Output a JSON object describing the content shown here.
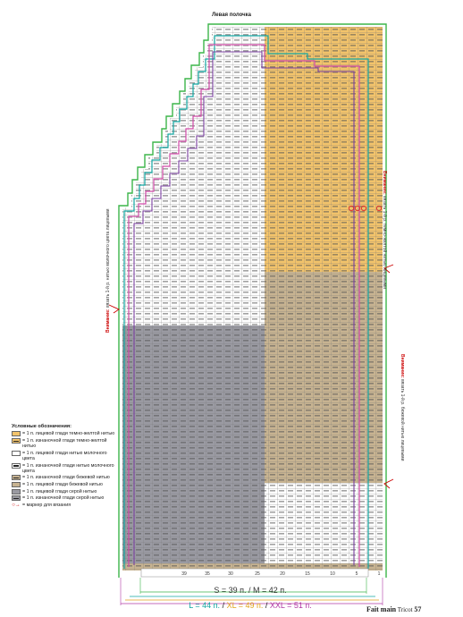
{
  "page": {
    "title": "Левая полочка"
  },
  "notes": {
    "left": {
      "strong": "Внимание:",
      "text": " вязать 1-й р. нитью молочного цвета лицевыми"
    },
    "right_top": {
      "strong": "Внимание:",
      "text": " вязать 1-й р. темно-желтой нитью лицевыми"
    },
    "right_bottom": {
      "strong": "Внимание:",
      "text": " вязать 1-й р. бежевой нитью лицевыми"
    }
  },
  "legend": {
    "title": "Условные обозначения:",
    "items": [
      {
        "label": "= 1 п. лицевой глади темно-желтой нитью",
        "color": "#f2c36b",
        "purl": false
      },
      {
        "label": "= 1 п. изнаночной глади темно-желтой нитью",
        "color": "#f2c36b",
        "purl": true
      },
      {
        "label": "= 1 п. лицевой глади нитью молочного цвета",
        "color": "#ffffff",
        "purl": false
      },
      {
        "label": "= 1 п. изнаночной глади нитью молочного цвета",
        "color": "#ffffff",
        "purl": true
      },
      {
        "label": "= 1 п. изнаночной глади бежевой нитью",
        "color": "#c7b391",
        "purl": true
      },
      {
        "label": "= 1 п. лицевой глади бежевой нитью",
        "color": "#c7b391",
        "purl": false
      },
      {
        "label": "= 1 п. лицевой глади серой нитью",
        "color": "#9a9aa2",
        "purl": false
      },
      {
        "label": "= 1 п. изнаночной глади серой нитью",
        "color": "#9a9aa2",
        "purl": true
      }
    ],
    "marker": {
      "label": "= маркер для вязания",
      "icon": "stitch-marker-icon"
    }
  },
  "scale": [
    "39",
    "35",
    "30",
    "25",
    "20",
    "15",
    "10",
    "5",
    "1"
  ],
  "sizes": {
    "line1": "S = 39 п.  /  M = 42 п.",
    "L": "L = 44 п.",
    "sep1": "  /  ",
    "XL": "XL = 49 п.",
    "sep2": "  /  ",
    "XXL": "XXL = 51 п."
  },
  "footer": {
    "brand": "Fait main",
    "magazine": "Tricot",
    "page": "57"
  },
  "colors": {
    "mustard": "#f2c36b",
    "beige": "#c7b391",
    "gray": "#9a9aa2",
    "milk": "#ffffff",
    "green": "#3db54a",
    "teal": "#12a6a2",
    "pink": "#d04aa8",
    "purple": "#7a3fa0",
    "orange": "#e0a31a"
  }
}
